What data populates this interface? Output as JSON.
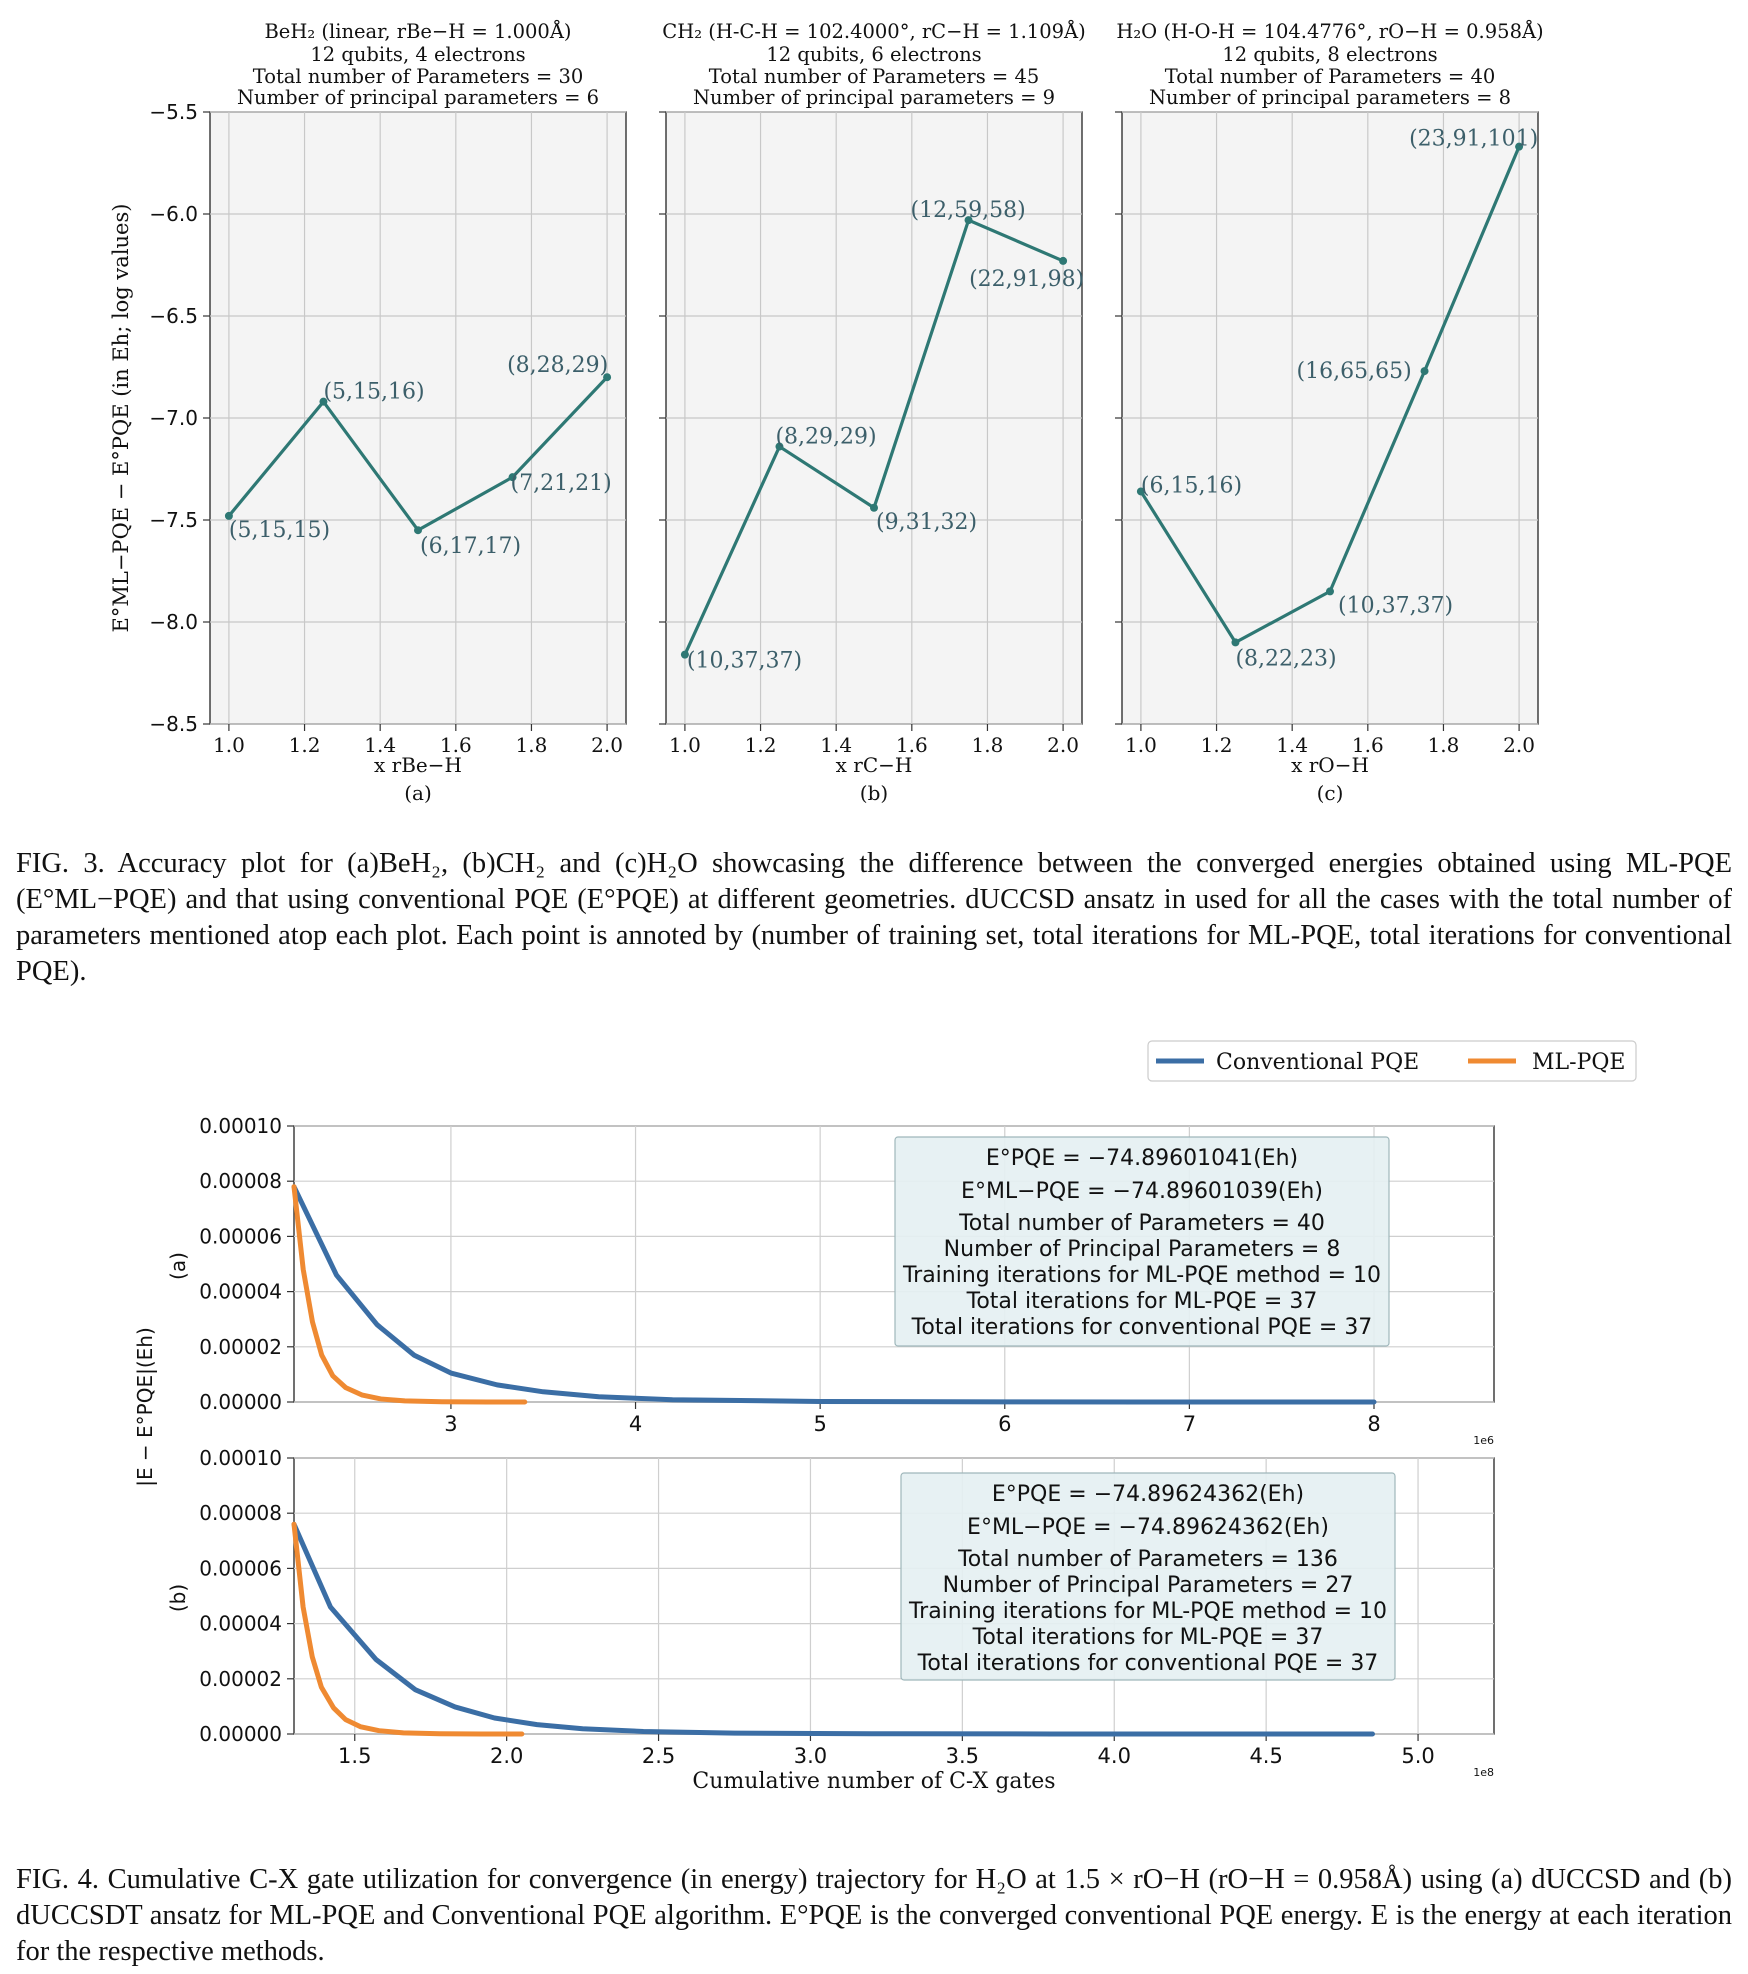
{
  "fig3": {
    "caption_label": "FIG. 3.",
    "caption_text": "Accuracy plot for (a)BeH₂, (b)CH₂ and (c)H₂O showcasing the difference between the converged energies obtained using ML-PQE (E°ML−PQE) and that using conventional PQE (E°PQE) at different geometries. dUCCSD ansatz in used for all the cases with the total number of parameters mentioned atop each plot. Each point is annoted by (number of training set, total iterations for ML-PQE, total iterations for conventional PQE).",
    "ylabel": "E°ML−PQE − E°PQE (in Eh; log values)",
    "line_color": "#2e7874",
    "panels": [
      {
        "id": "a",
        "title_lines": [
          "BeH₂ (linear, rBe−H = 1.000Å)",
          "12 qubits, 4 electrons",
          "Total number of Parameters = 30",
          "Number of principal parameters = 6"
        ],
        "xlabel": "x rBe−H",
        "sublabel": "(a)"
      },
      {
        "id": "b",
        "title_lines": [
          "CH₂ (H-C-H = 102.4000°, rC−H = 1.109Å)",
          "12 qubits, 6 electrons",
          "Total number of Parameters = 45",
          "Number of principal parameters = 9"
        ],
        "xlabel": "x rC−H",
        "sublabel": "(b)"
      },
      {
        "id": "c",
        "title_lines": [
          "H₂O (H-O-H = 104.4776°, rO−H = 0.958Å)",
          "12 qubits, 8 electrons",
          "Total number of Parameters = 40",
          "Number of principal parameters = 8"
        ],
        "xlabel": "x rO−H",
        "sublabel": "(c)"
      }
    ]
  },
  "fig4": {
    "caption_label": "FIG. 4.",
    "caption_text": "Cumulative C-X gate utilization for convergence (in energy) trajectory for H₂O at 1.5 × rO−H (rO−H = 0.958Å) using (a) dUCCSD and (b) dUCCSDT ansatz for ML-PQE and Conventional PQE algorithm. E°PQE is the converged conventional PQE energy. E is the energy at each iteration for the respective methods.",
    "legend": [
      {
        "name": "Conventional PQE",
        "color": "#3b6ea5"
      },
      {
        "name": "ML-PQE",
        "color": "#ef8a32"
      }
    ],
    "ylabel": "|E − E°PQE|(Eh)",
    "xlabel": "Cumulative number of C-X gates",
    "panels": [
      {
        "id": "a",
        "side_label": "(a)",
        "exponent": "1e6",
        "infobox": [
          "E°PQE = −74.89601041(Eh)",
          "E°ML−PQE = −74.89601039(Eh)",
          "Total number of Parameters = 40",
          "Number of Principal Parameters = 8",
          "Training iterations for ML-PQE method = 10",
          "Total iterations for ML-PQE = 37",
          "Total iterations for conventional PQE = 37"
        ]
      },
      {
        "id": "b",
        "side_label": "(b)",
        "exponent": "1e8",
        "infobox": [
          "E°PQE = −74.89624362(Eh)",
          "E°ML−PQE = −74.89624362(Eh)",
          "Total number of Parameters = 136",
          "Number of Principal Parameters = 27",
          "Training iterations for ML-PQE method = 10",
          "Total iterations for ML-PQE = 37",
          "Total iterations for conventional PQE = 37"
        ]
      }
    ]
  },
  "chart_data": [
    {
      "type": "line",
      "id": "fig3a",
      "x": [
        1.0,
        1.25,
        1.5,
        1.75,
        2.0
      ],
      "y": [
        -7.48,
        -6.92,
        -7.55,
        -7.29,
        -6.8
      ],
      "point_labels": [
        "(5,15,15)",
        "(5,15,16)",
        "(6,17,17)",
        "(7,21,21)",
        "(8,28,29)"
      ],
      "xlim": [
        0.95,
        2.05
      ],
      "ylim": [
        -8.5,
        -5.5
      ],
      "xticks": [
        "1.0",
        "1.2",
        "1.4",
        "1.6",
        "1.8",
        "2.0"
      ],
      "yticks": [
        "−5.5",
        "−6.0",
        "−6.5",
        "−7.0",
        "−7.5",
        "−8.0",
        "−8.5"
      ],
      "grid": true
    },
    {
      "type": "line",
      "id": "fig3b",
      "x": [
        1.0,
        1.25,
        1.5,
        1.75,
        2.0
      ],
      "y": [
        -8.16,
        -7.14,
        -7.44,
        -6.03,
        -6.23
      ],
      "point_labels": [
        "(10,37,37)",
        "(8,29,29)",
        "(9,31,32)",
        "(12,59,58)",
        "(22,91,98)"
      ],
      "xlim": [
        0.95,
        2.05
      ],
      "ylim": [
        -8.5,
        -5.5
      ],
      "xticks": [
        "1.0",
        "1.2",
        "1.4",
        "1.6",
        "1.8",
        "2.0"
      ],
      "grid": true
    },
    {
      "type": "line",
      "id": "fig3c",
      "x": [
        1.0,
        1.25,
        1.5,
        1.75,
        2.0
      ],
      "y": [
        -7.36,
        -8.1,
        -7.85,
        -6.77,
        -5.67
      ],
      "point_labels": [
        "(6,15,16)",
        "(8,22,23)",
        "(10,37,37)",
        "(16,65,65)",
        "(23,91,101)"
      ],
      "xlim": [
        0.95,
        2.05
      ],
      "ylim": [
        -8.5,
        -5.5
      ],
      "xticks": [
        "1.0",
        "1.2",
        "1.4",
        "1.6",
        "1.8",
        "2.0"
      ],
      "grid": true
    },
    {
      "type": "line",
      "id": "fig4a",
      "xlim": [
        2.15,
        8.65
      ],
      "ylim": [
        0,
        0.0001
      ],
      "xticks": [
        "3",
        "4",
        "5",
        "6",
        "7",
        "8"
      ],
      "yticks": [
        "0.00010",
        "0.00008",
        "0.00006",
        "0.00004",
        "0.00002",
        "0.00000"
      ],
      "series": [
        {
          "name": "Conventional PQE",
          "x": [
            2.15,
            2.38,
            2.6,
            2.8,
            3.0,
            3.25,
            3.5,
            3.8,
            4.2,
            5.0,
            6.0,
            7.0,
            8.0
          ],
          "y": [
            7.8e-05,
            4.6e-05,
            2.8e-05,
            1.7e-05,
            1.05e-05,
            6.2e-06,
            3.7e-06,
            1.9e-06,
            8e-07,
            2e-07,
            5e-08,
            1e-08,
            0.0
          ]
        },
        {
          "name": "ML-PQE",
          "x": [
            2.15,
            2.2,
            2.25,
            2.3,
            2.36,
            2.43,
            2.52,
            2.62,
            2.75,
            2.95,
            3.2,
            3.4
          ],
          "y": [
            7.8e-05,
            4.8e-05,
            2.9e-05,
            1.7e-05,
            9.5e-06,
            5.2e-06,
            2.5e-06,
            1.1e-06,
            4e-07,
            1e-07,
            2e-08,
            0.0
          ]
        }
      ],
      "grid": true
    },
    {
      "type": "line",
      "id": "fig4b",
      "xlim": [
        1.3,
        5.25
      ],
      "ylim": [
        0,
        0.0001
      ],
      "xticks": [
        "1.5",
        "2.0",
        "2.5",
        "3.0",
        "3.5",
        "4.0",
        "4.5",
        "5.0"
      ],
      "yticks": [
        "0.00010",
        "0.00008",
        "0.00006",
        "0.00004",
        "0.00002",
        "0.00000"
      ],
      "series": [
        {
          "name": "Conventional PQE",
          "x": [
            1.3,
            1.42,
            1.57,
            1.7,
            1.83,
            1.96,
            2.1,
            2.25,
            2.45,
            2.75,
            3.2,
            3.8,
            4.3,
            4.85
          ],
          "y": [
            7.6e-05,
            4.6e-05,
            2.7e-05,
            1.6e-05,
            9.8e-06,
            5.8e-06,
            3.4e-06,
            1.9e-06,
            9e-07,
            3e-07,
            8e-08,
            2e-08,
            0.0,
            0.0
          ]
        },
        {
          "name": "ML-PQE",
          "x": [
            1.3,
            1.33,
            1.36,
            1.39,
            1.43,
            1.47,
            1.52,
            1.58,
            1.66,
            1.78,
            1.92,
            2.05
          ],
          "y": [
            7.6e-05,
            4.6e-05,
            2.8e-05,
            1.7e-05,
            9.5e-06,
            5.2e-06,
            2.6e-06,
            1.2e-06,
            4e-07,
            1e-07,
            2e-08,
            0.0
          ]
        }
      ],
      "grid": true
    }
  ]
}
